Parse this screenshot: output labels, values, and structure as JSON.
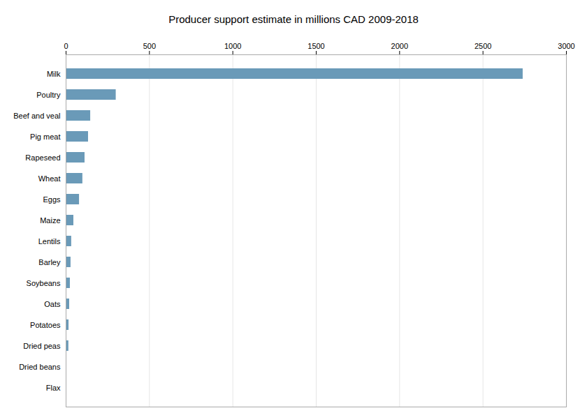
{
  "chart_data": {
    "type": "bar",
    "title": "Producer support estimate in millions CAD 2009-2018",
    "orientation": "horizontal",
    "categories": [
      "Milk",
      "Poultry",
      "Beef and veal",
      "Pig meat",
      "Rapeseed",
      "Wheat",
      "Eggs",
      "Maize",
      "Lentils",
      "Barley",
      "Soybeans",
      "Oats",
      "Potatoes",
      "Dried peas",
      "Dried beans",
      "Flax"
    ],
    "values": [
      2740,
      300,
      147,
      134,
      113,
      100,
      80,
      46,
      33,
      29,
      25,
      21,
      17,
      16,
      2,
      1
    ],
    "color": "#6a9ab8",
    "xlim": [
      0,
      3000
    ],
    "xticks": [
      0,
      500,
      1000,
      1500,
      2000,
      2500,
      3000
    ],
    "grid": true
  }
}
